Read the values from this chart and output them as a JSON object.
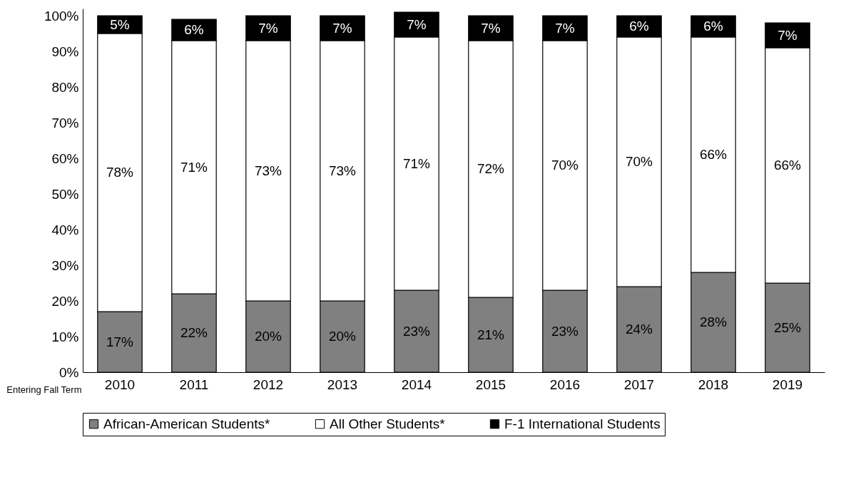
{
  "chart_data": {
    "type": "bar",
    "stacked": true,
    "xlabel": "Entering Fall Term",
    "categories": [
      "2010",
      "2011",
      "2012",
      "2013",
      "2014",
      "2015",
      "2016",
      "2017",
      "2018",
      "2019"
    ],
    "series": [
      {
        "name": "African-American Students*",
        "color": "#808080",
        "values": [
          17,
          22,
          20,
          20,
          23,
          21,
          23,
          24,
          28,
          25
        ],
        "value_labels": [
          "17%",
          "22%",
          "20%",
          "20%",
          "23%",
          "21%",
          "23%",
          "24%",
          "28%",
          "25%"
        ]
      },
      {
        "name": "All Other Students*",
        "color": "#ffffff",
        "values": [
          78,
          71,
          73,
          73,
          71,
          72,
          70,
          70,
          66,
          66
        ],
        "value_labels": [
          "78%",
          "71%",
          "73%",
          "73%",
          "71%",
          "72%",
          "70%",
          "70%",
          "66%",
          "66%"
        ]
      },
      {
        "name": "F-1 International Students",
        "color": "#000000",
        "values": [
          5,
          6,
          7,
          7,
          7,
          7,
          7,
          6,
          6,
          7
        ],
        "value_labels": [
          "5%",
          "6%",
          "7%",
          "7%",
          "7%",
          "7%",
          "7%",
          "6%",
          "6%",
          "7%"
        ]
      }
    ],
    "ylim": [
      0,
      102
    ],
    "yticks": [
      {
        "value": 0,
        "label": "0%"
      },
      {
        "value": 10,
        "label": "10%"
      },
      {
        "value": 20,
        "label": "20%"
      },
      {
        "value": 30,
        "label": "30%"
      },
      {
        "value": 40,
        "label": "40%"
      },
      {
        "value": 50,
        "label": "50%"
      },
      {
        "value": 60,
        "label": "60%"
      },
      {
        "value": 70,
        "label": "70%"
      },
      {
        "value": 80,
        "label": "80%"
      },
      {
        "value": 90,
        "label": "90%"
      },
      {
        "value": 100,
        "label": "100%"
      }
    ],
    "grid": false,
    "legend": "bottom"
  }
}
